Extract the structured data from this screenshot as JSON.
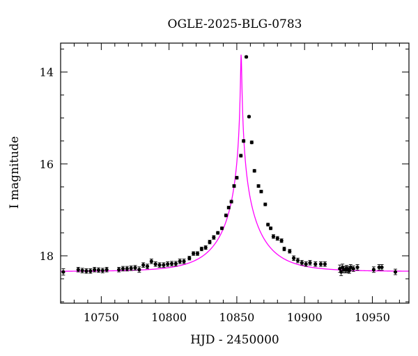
{
  "chart_data": {
    "type": "scatter",
    "title": "OGLE-2025-BLG-0783",
    "xlabel": "HJD - 2450000",
    "ylabel": "I magnitude",
    "xlim": [
      10720,
      10977
    ],
    "ylim": [
      19.03,
      13.37
    ],
    "y_inverted": true,
    "x_ticks": [
      10750,
      10800,
      10850,
      10900,
      10950
    ],
    "x_tick_labels": [
      "10750",
      "10800",
      "10850",
      "10900",
      "10950"
    ],
    "y_ticks": [
      14,
      16,
      18
    ],
    "y_tick_labels": [
      "14",
      "16",
      "18"
    ],
    "x_minor_step": 10,
    "y_minor_step": 0.5,
    "grid": false,
    "colors": {
      "data": "#000000",
      "model": "#ff00ff"
    },
    "model": {
      "name": "",
      "type": "point-lens",
      "t0": 10853.2,
      "tE": 30.0,
      "u0": 0.012,
      "baseline_mag": 18.34,
      "peak_mag": 13.6
    },
    "series": [
      {
        "name": "",
        "x": [
          10722,
          10733,
          10736,
          10739,
          10742,
          10745,
          10748,
          10751,
          10754,
          10763,
          10766,
          10769,
          10772,
          10775,
          10778,
          10781,
          10784,
          10787,
          10790,
          10793,
          10796,
          10799,
          10802,
          10805,
          10808,
          10811,
          10815,
          10818,
          10821,
          10824,
          10827,
          10830,
          10833,
          10836,
          10839,
          10842,
          10844,
          10846,
          10848,
          10850,
          10853,
          10855,
          10857,
          10859,
          10861,
          10863,
          10866,
          10868,
          10871,
          10873,
          10875,
          10877,
          10880,
          10883,
          10885,
          10889,
          10892,
          10895,
          10898,
          10901,
          10904,
          10908,
          10912,
          10915,
          10926,
          10927,
          10928,
          10929,
          10930,
          10931,
          10932,
          10933,
          10934,
          10936,
          10939,
          10951,
          10955,
          10957,
          10967
        ],
        "y": [
          18.35,
          18.3,
          18.32,
          18.33,
          18.33,
          18.3,
          18.31,
          18.32,
          18.3,
          18.3,
          18.28,
          18.28,
          18.27,
          18.26,
          18.3,
          18.2,
          18.23,
          18.12,
          18.18,
          18.2,
          18.2,
          18.18,
          18.17,
          18.17,
          18.12,
          18.12,
          18.05,
          17.95,
          17.95,
          17.85,
          17.82,
          17.7,
          17.6,
          17.5,
          17.4,
          17.12,
          16.95,
          16.82,
          16.48,
          16.3,
          15.82,
          15.5,
          13.67,
          14.97,
          15.53,
          16.15,
          16.48,
          16.6,
          16.88,
          17.32,
          17.4,
          17.58,
          17.62,
          17.67,
          17.85,
          17.9,
          18.05,
          18.1,
          18.15,
          18.18,
          18.15,
          18.18,
          18.18,
          18.18,
          18.28,
          18.35,
          18.25,
          18.3,
          18.3,
          18.28,
          18.3,
          18.32,
          18.25,
          18.28,
          18.25,
          18.3,
          18.25,
          18.25,
          18.35
        ],
        "yerr": [
          0.07,
          0.05,
          0.05,
          0.05,
          0.05,
          0.05,
          0.05,
          0.05,
          0.05,
          0.05,
          0.05,
          0.05,
          0.05,
          0.05,
          0.06,
          0.05,
          0.05,
          0.05,
          0.05,
          0.05,
          0.05,
          0.05,
          0.05,
          0.05,
          0.05,
          0.05,
          0.04,
          0.04,
          0.04,
          0.04,
          0.04,
          0.04,
          0.04,
          0.03,
          0.03,
          0.03,
          0.03,
          0.03,
          0.03,
          0.03,
          0.03,
          0.03,
          0.02,
          0.02,
          0.03,
          0.03,
          0.03,
          0.03,
          0.03,
          0.03,
          0.03,
          0.04,
          0.04,
          0.04,
          0.04,
          0.04,
          0.05,
          0.05,
          0.05,
          0.05,
          0.05,
          0.05,
          0.05,
          0.05,
          0.08,
          0.08,
          0.07,
          0.07,
          0.07,
          0.07,
          0.07,
          0.06,
          0.06,
          0.06,
          0.06,
          0.06,
          0.06,
          0.06,
          0.06
        ]
      }
    ]
  }
}
